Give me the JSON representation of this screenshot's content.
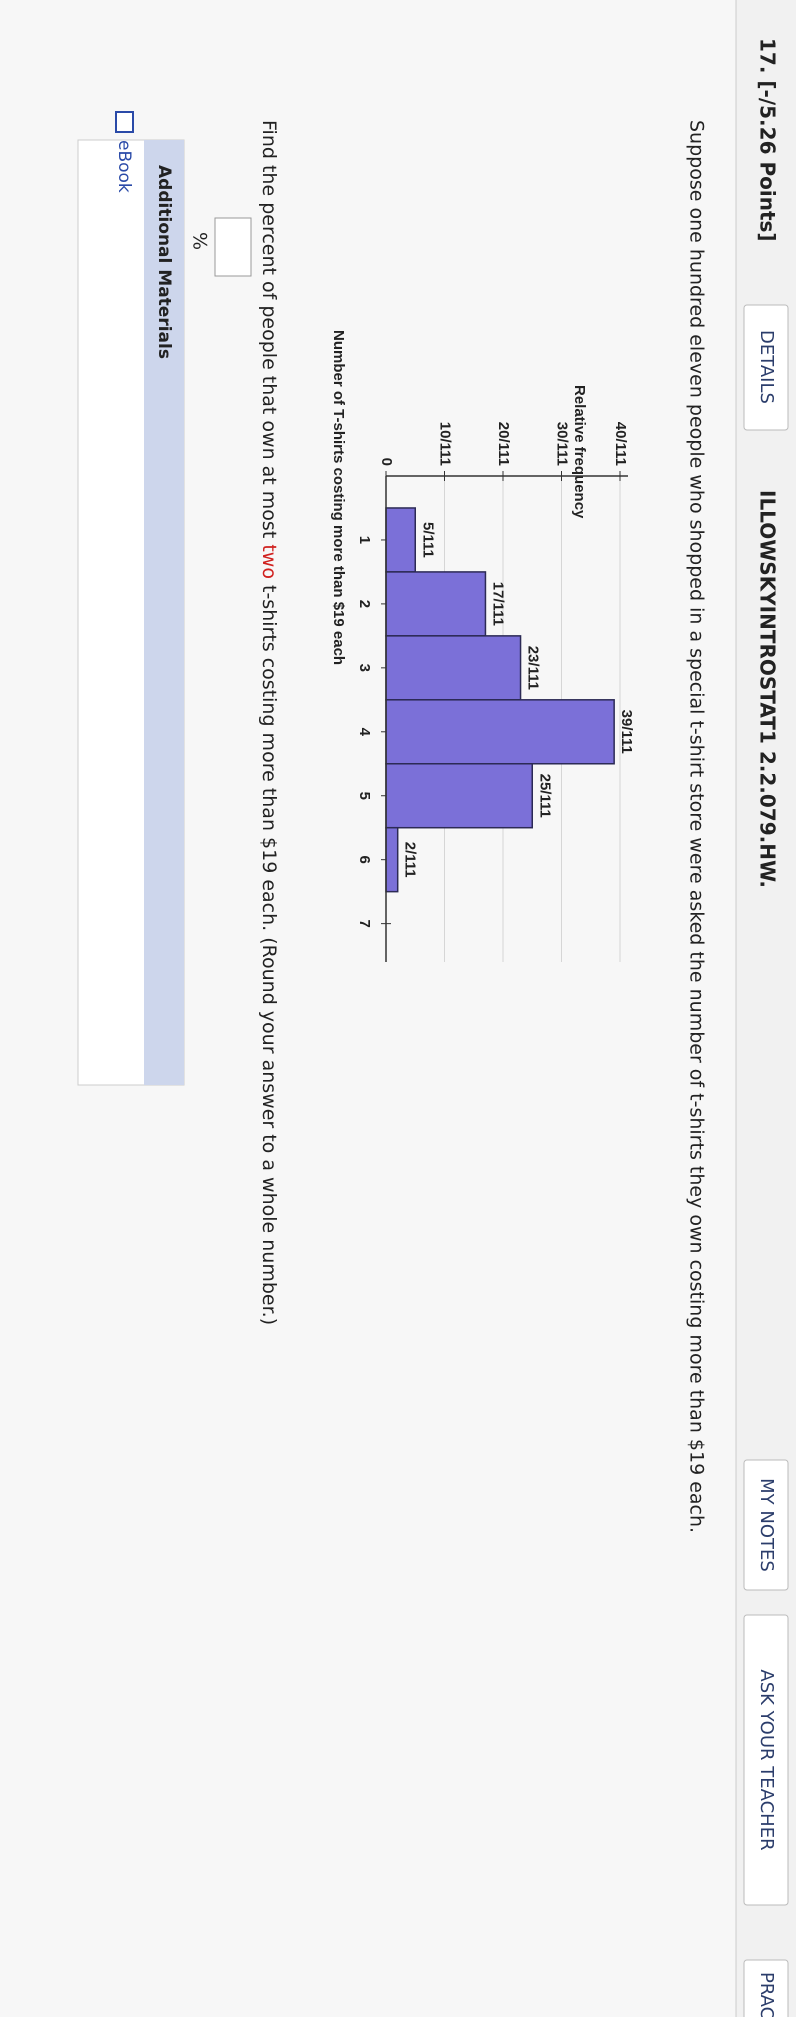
{
  "header": {
    "points": "17. [-/5.26 Points]",
    "details": "DETAILS",
    "assignment": "ILLOWSKYINTROSTAT1 2.2.079.HW.",
    "my_notes": "MY NOTES",
    "ask_teacher": "ASK YOUR TEACHER",
    "practice": "PRAC"
  },
  "question": "Suppose one hundred eleven people who shopped in a special t-shirt store were asked the number of t-shirts they own costing more than $19 each.",
  "prompt": {
    "before": "Find the percent of people that own at most ",
    "highlight": "two",
    "after": " t-shirts costing more than $19 each. (Round your answer to a whole number.)"
  },
  "answer_unit": "%",
  "materials": {
    "title": "Additional Materials",
    "ebook": "eBook"
  },
  "chart_data": {
    "type": "bar",
    "y_label": "Relative frequency",
    "x_label": "Number of T-shirts costing more than $19 each",
    "x": [
      1,
      2,
      3,
      4,
      5,
      6
    ],
    "values": [
      5,
      17,
      23,
      39,
      25,
      2
    ],
    "value_labels": [
      "5/111",
      "17/111",
      "23/111",
      "39/111",
      "25/111",
      "2/111"
    ],
    "color": "#7b70d8",
    "xlim": [
      0,
      7.6
    ],
    "xticks": [
      1,
      2,
      3,
      4,
      5,
      6,
      7
    ],
    "ylim": [
      0,
      40
    ],
    "yticks": [
      0,
      {
        "value": 10,
        "label": "10/111"
      },
      {
        "value": 20,
        "label": "20/111"
      },
      {
        "value": 30,
        "label": "30/111"
      },
      {
        "value": 40,
        "label": "40/111"
      }
    ],
    "grid": true
  }
}
